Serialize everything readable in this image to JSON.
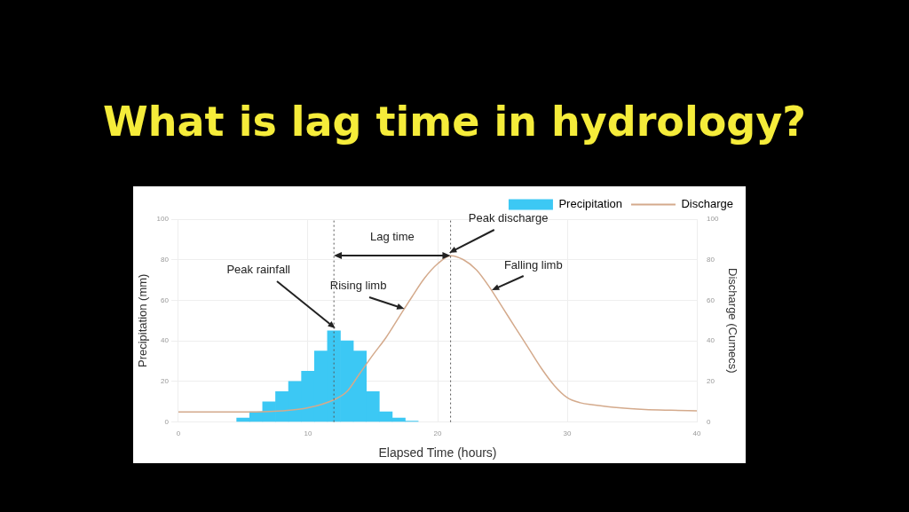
{
  "chart_data": {
    "type": "histogram",
    "title": "What is lag time in hydrology?",
    "xlabel": "Elapsed Time (hours)",
    "ylabel": "Precipitation (mm)",
    "y2label": "Discharge (Cumecs)",
    "bins": [
      4.5,
      5.5,
      6.5,
      7.5,
      8.5,
      9.5,
      10.5,
      11.5,
      12.5,
      13.5,
      14.5,
      15.5,
      16.5,
      17.5,
      18.5
    ],
    "series": [
      {
        "name": "Precipitation",
        "color": "#3cc8f4",
        "values": [
          2,
          5,
          10,
          15,
          20,
          25,
          35,
          45,
          40,
          35,
          15,
          5,
          2,
          0.5
        ]
      },
      {
        "name": "Discharge",
        "type": "line",
        "axis": "y2",
        "color": "#d4aa8c",
        "x": [
          0,
          3,
          6,
          8,
          10,
          12,
          13,
          14,
          15,
          16,
          17,
          18,
          19,
          20,
          21,
          22,
          23,
          24,
          25,
          26,
          27,
          28,
          29,
          30,
          31,
          32,
          34,
          36,
          38,
          40
        ],
        "values": [
          5,
          5,
          5,
          5.5,
          7,
          11,
          15,
          24,
          33,
          41.5,
          51.5,
          61.5,
          71,
          78,
          82,
          80,
          75,
          66.5,
          56.5,
          46.5,
          36.5,
          26.5,
          18,
          12,
          9.5,
          8.5,
          7,
          6.2,
          5.8,
          5.5
        ]
      }
    ],
    "xlim": [
      0,
      40
    ],
    "xticks": [
      0,
      10,
      20,
      30,
      40
    ],
    "ylim": [
      0,
      100
    ],
    "yticks": [
      0,
      20,
      40,
      60,
      80,
      100
    ],
    "y2lim": [
      0,
      100
    ],
    "y2ticks": [
      0,
      20,
      40,
      60,
      80,
      100
    ],
    "grid": true,
    "legend": "top right",
    "line_style": "solid",
    "marker": "none",
    "ref_lines": [
      {
        "axis": "x",
        "value": 12,
        "color": "#555555",
        "line_style": "dotted"
      },
      {
        "axis": "x",
        "value": 21,
        "color": "#555555",
        "line_style": "dotted"
      }
    ],
    "annotations": [
      "Lag time",
      {
        "text": "Peak rainfall",
        "x": 12,
        "y": 45
      },
      {
        "text": "Rising limb",
        "x": 17.3,
        "y": 54.5
      },
      {
        "text": "Peak discharge",
        "x": 21,
        "y": 82
      },
      {
        "text": "Falling limb",
        "x": 24.3,
        "y": 63.5
      }
    ]
  }
}
